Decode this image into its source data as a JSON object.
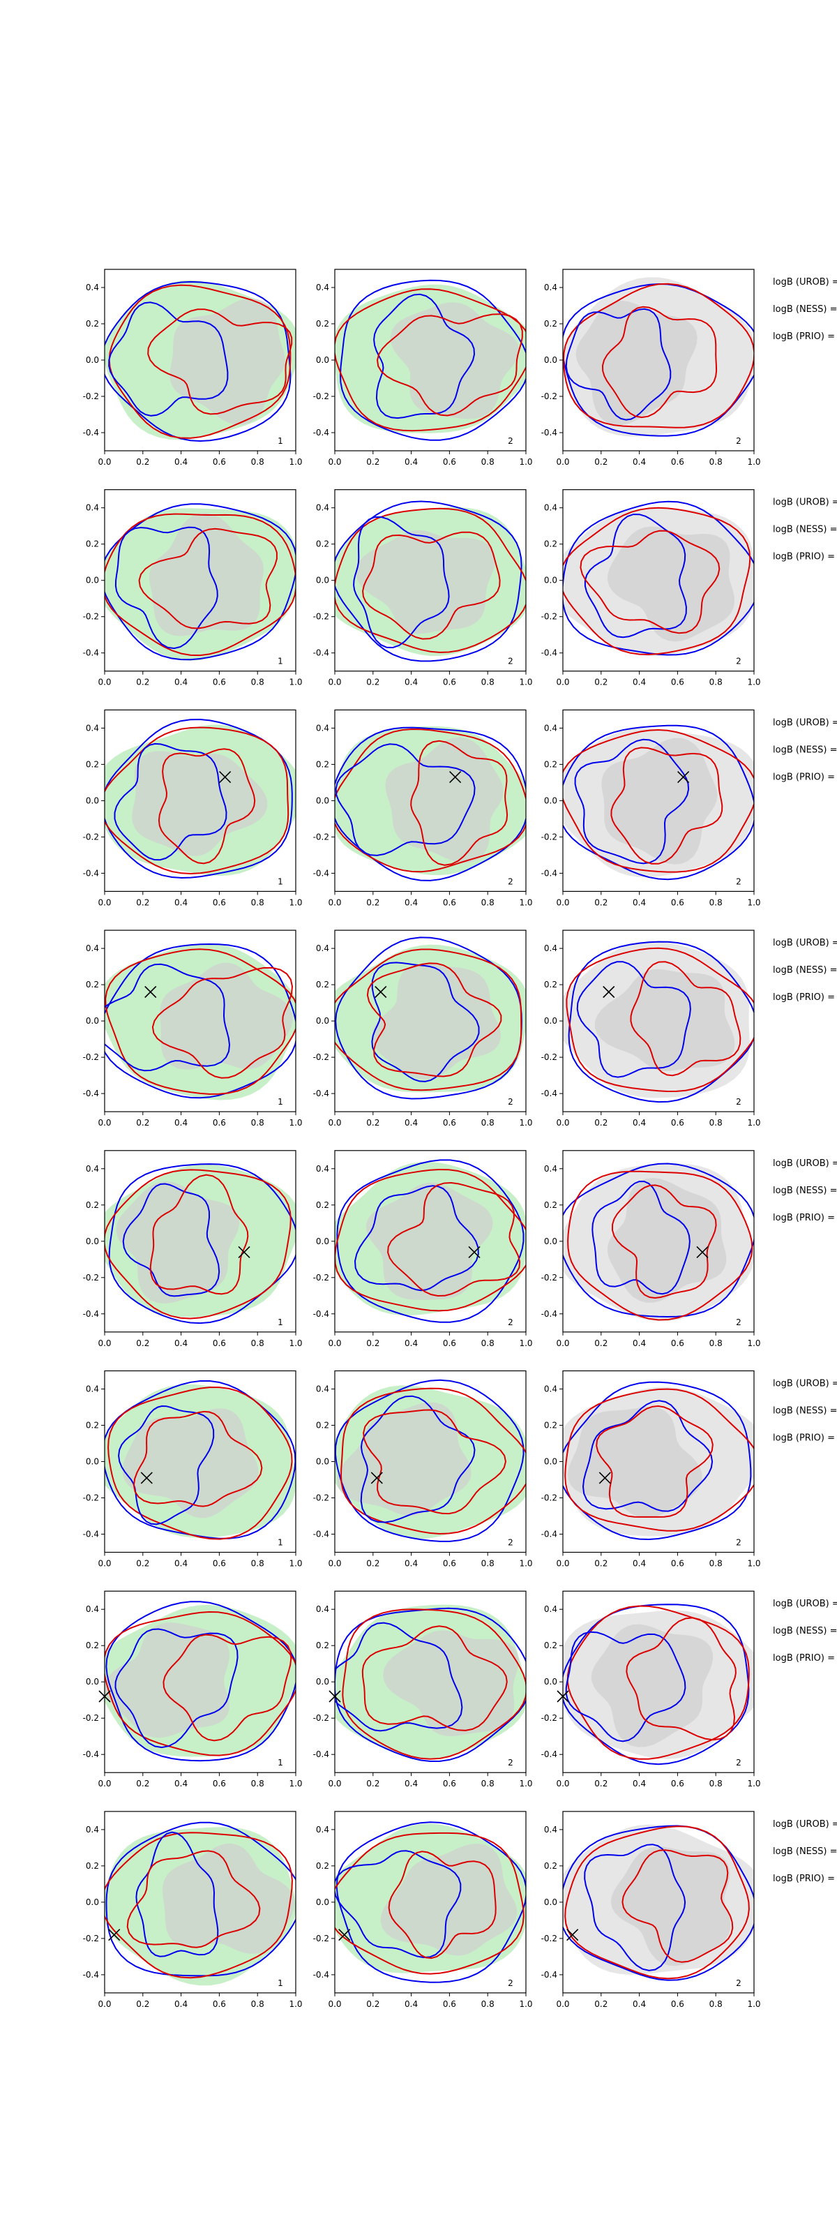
{
  "chart_data": {
    "type": "contour",
    "grid": {
      "rows": 8,
      "cols": 3
    },
    "xlim": [
      0.0,
      1.0
    ],
    "ylim": [
      -0.5,
      0.5
    ],
    "xticks": [
      "0.0",
      "0.2",
      "0.4",
      "0.6",
      "0.8",
      "1.0"
    ],
    "yticks": [
      "-0.4",
      "-0.2",
      "0.0",
      "0.2",
      "0.4"
    ],
    "panel_labels": [
      "1",
      "2",
      "2"
    ],
    "side_labels": [
      "logB (UROB) =",
      "logB (NESS) =",
      "logB (PRIO) ="
    ],
    "colors": {
      "blue": "#0000ee",
      "red": "#dd0000",
      "green_fill": "#c8f0c8",
      "grey_fill": "#e6e6e6",
      "grey_inner": "#cfcfcf",
      "marker": "#000000"
    },
    "markers": [
      null,
      null,
      [
        0.63,
        0.13
      ],
      [
        0.24,
        0.16
      ],
      [
        0.73,
        -0.06
      ],
      [
        0.22,
        -0.09
      ],
      [
        0.0,
        -0.08
      ],
      [
        0.05,
        -0.18
      ]
    ]
  }
}
